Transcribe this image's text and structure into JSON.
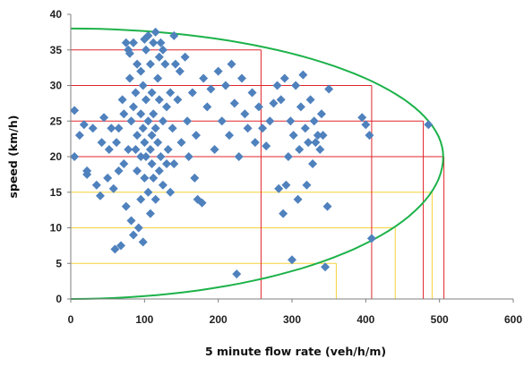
{
  "chart_data": {
    "type": "scatter",
    "title": "",
    "xlabel": "5 minute flow rate (veh/h/m)",
    "ylabel": "speed (km/h)",
    "xlim": [
      0,
      600
    ],
    "ylim": [
      0,
      40
    ],
    "x_ticks": [
      0,
      100,
      200,
      300,
      400,
      500,
      600
    ],
    "y_ticks": [
      0,
      5,
      10,
      15,
      20,
      25,
      30,
      35,
      40
    ],
    "grid": false,
    "legend": "none",
    "colors": {
      "points": "#4F81BD",
      "envelope": "#1DB24A",
      "red_guides": "#E0262B",
      "yellow_guides": "#F5D33A",
      "axis": "#7F7F7F"
    },
    "series": [
      {
        "marker": "diamond",
        "points": [
          [
            5,
            26.5
          ],
          [
            5,
            20
          ],
          [
            12,
            23
          ],
          [
            18,
            24.5
          ],
          [
            22,
            18
          ],
          [
            22,
            17.5
          ],
          [
            30,
            24
          ],
          [
            35,
            16
          ],
          [
            40,
            14.5
          ],
          [
            42,
            22
          ],
          [
            45,
            25.5
          ],
          [
            50,
            17
          ],
          [
            52,
            21
          ],
          [
            55,
            24
          ],
          [
            58,
            15.5
          ],
          [
            60,
            7
          ],
          [
            62,
            22
          ],
          [
            65,
            24
          ],
          [
            65,
            18
          ],
          [
            68,
            7.5
          ],
          [
            70,
            28
          ],
          [
            72,
            26
          ],
          [
            72,
            19
          ],
          [
            75,
            36
          ],
          [
            75,
            13
          ],
          [
            78,
            35
          ],
          [
            78,
            21
          ],
          [
            80,
            34.5
          ],
          [
            80,
            31
          ],
          [
            82,
            25
          ],
          [
            82,
            11
          ],
          [
            85,
            36
          ],
          [
            85,
            27
          ],
          [
            85,
            9
          ],
          [
            88,
            29
          ],
          [
            88,
            21
          ],
          [
            90,
            33
          ],
          [
            90,
            23
          ],
          [
            90,
            18
          ],
          [
            92,
            10
          ],
          [
            95,
            32
          ],
          [
            95,
            26
          ],
          [
            95,
            20
          ],
          [
            95,
            14
          ],
          [
            98,
            30
          ],
          [
            98,
            24
          ],
          [
            98,
            8
          ],
          [
            100,
            36.5
          ],
          [
            100,
            22
          ],
          [
            100,
            17
          ],
          [
            102,
            35
          ],
          [
            102,
            28
          ],
          [
            102,
            20
          ],
          [
            105,
            37
          ],
          [
            105,
            25
          ],
          [
            105,
            15
          ],
          [
            108,
            33
          ],
          [
            108,
            21
          ],
          [
            108,
            12
          ],
          [
            110,
            29
          ],
          [
            110,
            23
          ],
          [
            110,
            19
          ],
          [
            112,
            36
          ],
          [
            112,
            26
          ],
          [
            112,
            17
          ],
          [
            115,
            37.5
          ],
          [
            115,
            24
          ],
          [
            115,
            14
          ],
          [
            118,
            31
          ],
          [
            118,
            22
          ],
          [
            120,
            34
          ],
          [
            120,
            28
          ],
          [
            120,
            18
          ],
          [
            122,
            36
          ],
          [
            122,
            20
          ],
          [
            125,
            35
          ],
          [
            125,
            25
          ],
          [
            125,
            16
          ],
          [
            128,
            33
          ],
          [
            130,
            27
          ],
          [
            130,
            19
          ],
          [
            132,
            21
          ],
          [
            135,
            29
          ],
          [
            135,
            15
          ],
          [
            138,
            24
          ],
          [
            140,
            37
          ],
          [
            140,
            19
          ],
          [
            142,
            33
          ],
          [
            145,
            28
          ],
          [
            148,
            32
          ],
          [
            150,
            22
          ],
          [
            155,
            34
          ],
          [
            158,
            25
          ],
          [
            160,
            20
          ],
          [
            165,
            29
          ],
          [
            168,
            17
          ],
          [
            170,
            23
          ],
          [
            172,
            14
          ],
          [
            178,
            13.5
          ],
          [
            180,
            31
          ],
          [
            185,
            27
          ],
          [
            190,
            29.5
          ],
          [
            195,
            21
          ],
          [
            200,
            32
          ],
          [
            205,
            25
          ],
          [
            210,
            30
          ],
          [
            215,
            23
          ],
          [
            218,
            33
          ],
          [
            222,
            27.5
          ],
          [
            225,
            3.5
          ],
          [
            228,
            20
          ],
          [
            232,
            31
          ],
          [
            236,
            26
          ],
          [
            240,
            24
          ],
          [
            246,
            29
          ],
          [
            250,
            22
          ],
          [
            255,
            27
          ],
          [
            260,
            24
          ],
          [
            265,
            21.5
          ],
          [
            270,
            25
          ],
          [
            275,
            27.5
          ],
          [
            280,
            30
          ],
          [
            282,
            15.5
          ],
          [
            285,
            28
          ],
          [
            288,
            12
          ],
          [
            290,
            31
          ],
          [
            292,
            16
          ],
          [
            295,
            20
          ],
          [
            298,
            25
          ],
          [
            300,
            5.5
          ],
          [
            302,
            23
          ],
          [
            305,
            30
          ],
          [
            308,
            14
          ],
          [
            310,
            21
          ],
          [
            312,
            27
          ],
          [
            315,
            31.5
          ],
          [
            318,
            24
          ],
          [
            320,
            16
          ],
          [
            322,
            22
          ],
          [
            325,
            28
          ],
          [
            328,
            19
          ],
          [
            330,
            25
          ],
          [
            332,
            22
          ],
          [
            335,
            23
          ],
          [
            338,
            21
          ],
          [
            340,
            26
          ],
          [
            342,
            23
          ],
          [
            345,
            4.5
          ],
          [
            348,
            13
          ],
          [
            350,
            29.5
          ],
          [
            395,
            25.5
          ],
          [
            400,
            24.5
          ],
          [
            405,
            23
          ],
          [
            408,
            8.5
          ],
          [
            485,
            24.5
          ]
        ]
      }
    ],
    "envelope": {
      "x_max": 505,
      "y_at_x0_top": 38,
      "y_at_x0_bottom": 0,
      "y_at_x_max": 20
    },
    "guides": {
      "red": [
        {
          "y": 35,
          "x": 258
        },
        {
          "y": 30,
          "x": 408
        },
        {
          "y": 25,
          "x": 478
        },
        {
          "y": 20,
          "x": 506
        }
      ],
      "yellow": [
        {
          "y": 15,
          "x": 490
        },
        {
          "y": 10,
          "x": 440
        },
        {
          "y": 5,
          "x": 360
        }
      ]
    }
  }
}
